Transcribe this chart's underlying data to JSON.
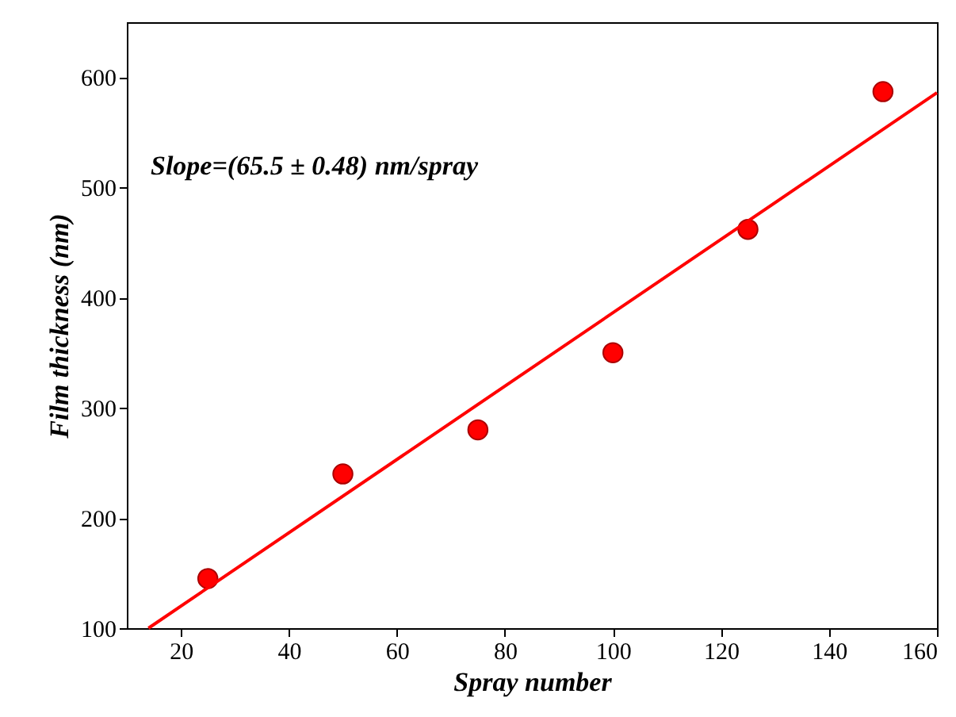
{
  "chart_data": {
    "type": "scatter",
    "xlabel": "Spray number",
    "ylabel": "Film thickness (nm)",
    "annotations": [
      "Slope=(65.5 ± 0.48) nm/spray"
    ],
    "xlim": [
      10,
      160
    ],
    "xticks": [
      20,
      40,
      60,
      80,
      100,
      120,
      140,
      160
    ],
    "ylim": [
      100,
      650
    ],
    "yticks": [
      100,
      200,
      300,
      400,
      500,
      600
    ],
    "grid": false,
    "marker": "circle",
    "series": [
      {
        "color": "#ff0000",
        "x": [
          25,
          50,
          75,
          100,
          125,
          150
        ],
        "values": [
          145,
          240,
          280,
          350,
          462,
          587
        ]
      },
      {
        "type": "line",
        "color": "#ff0000",
        "marker": "none",
        "line_style": "solid",
        "x": [
          14,
          160
        ],
        "values": [
          100,
          586
        ]
      }
    ]
  }
}
